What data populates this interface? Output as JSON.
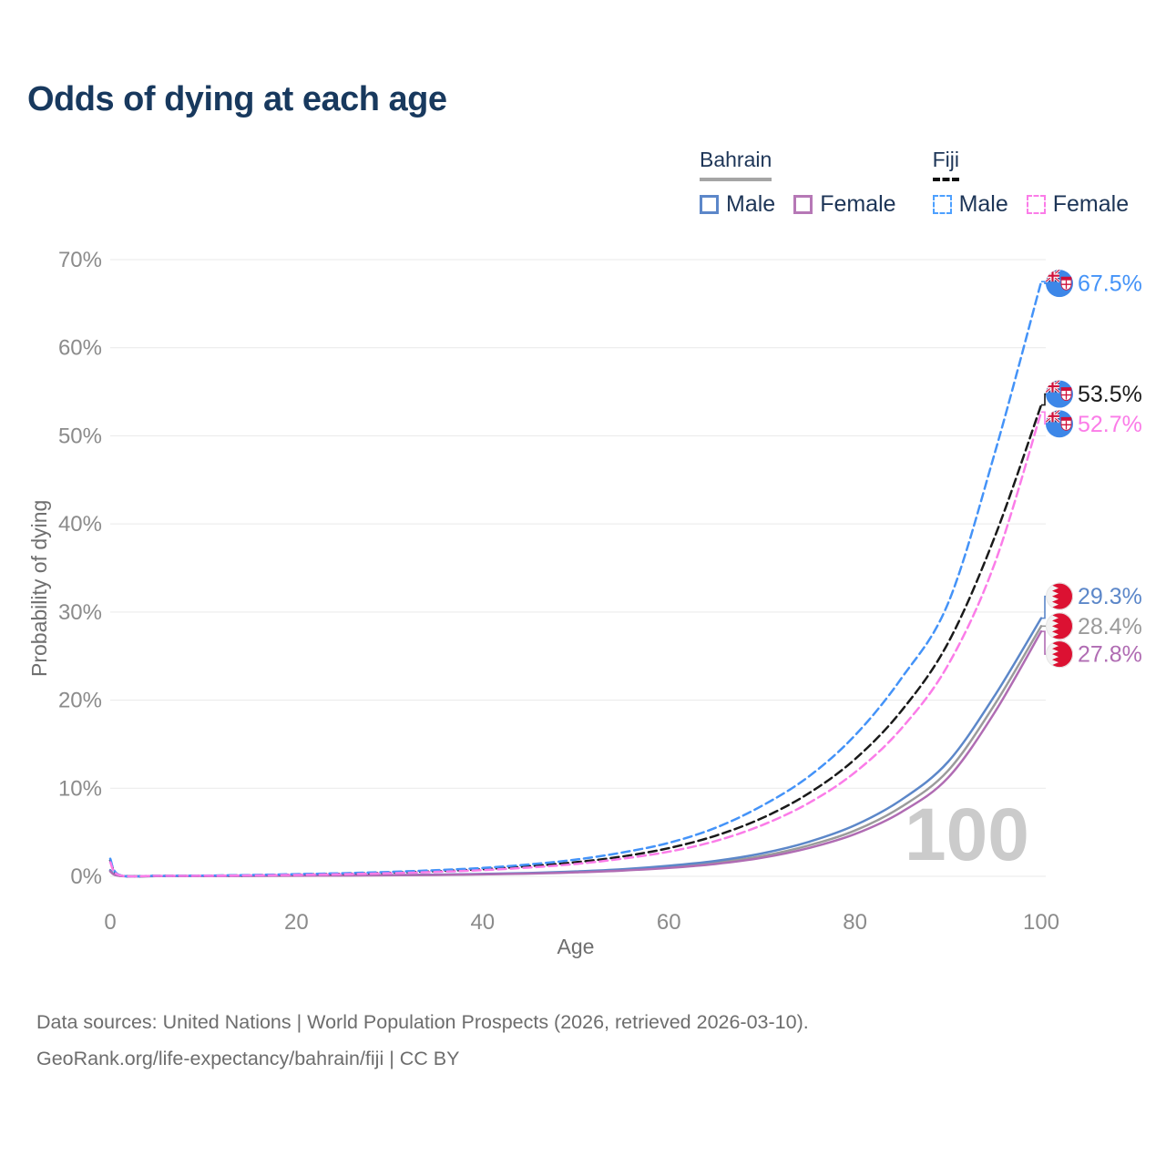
{
  "title": "Odds of dying at each age",
  "watermark": "100",
  "legend": {
    "groups": [
      {
        "country": "Bahrain",
        "style": "solid",
        "line_color": "#a5a5a5",
        "items": [
          {
            "label": "Male",
            "color": "#5c87c9"
          },
          {
            "label": "Female",
            "color": "#b678b6"
          }
        ]
      },
      {
        "country": "Fiji",
        "style": "dashed",
        "line_color": "#111111",
        "items": [
          {
            "label": "Male",
            "color": "#4da0ff"
          },
          {
            "label": "Female",
            "color": "#fb7ce8"
          }
        ]
      }
    ]
  },
  "footer": {
    "line1": "Data sources: United Nations | World Population Prospects (2026, retrieved 2026-03-10).",
    "line2": "GeoRank.org/life-expectancy/bahrain/fiji | CC BY"
  },
  "chart_data": {
    "type": "line",
    "title": "Odds of dying at each age",
    "xlabel": "Age",
    "ylabel": "Probability of dying",
    "xlim": [
      0,
      100
    ],
    "ylim": [
      0,
      70
    ],
    "grid": "horizontal",
    "legend_position": "top-right",
    "x_ticks": [
      {
        "value": 0,
        "label": "0"
      },
      {
        "value": 20,
        "label": "20"
      },
      {
        "value": 40,
        "label": "40"
      },
      {
        "value": 60,
        "label": "60"
      },
      {
        "value": 80,
        "label": "80"
      },
      {
        "value": 100,
        "label": "100"
      }
    ],
    "y_ticks": [
      {
        "value": 0,
        "label": "0%"
      },
      {
        "value": 10,
        "label": "10%"
      },
      {
        "value": 20,
        "label": "20%"
      },
      {
        "value": 30,
        "label": "30%"
      },
      {
        "value": 40,
        "label": "40%"
      },
      {
        "value": 50,
        "label": "50%"
      },
      {
        "value": 60,
        "label": "60%"
      },
      {
        "value": 70,
        "label": "70%"
      }
    ],
    "ages": [
      0,
      1,
      5,
      10,
      15,
      20,
      25,
      30,
      35,
      40,
      45,
      50,
      55,
      60,
      65,
      70,
      75,
      80,
      85,
      90,
      95,
      100
    ],
    "series": [
      {
        "id": "bahrain-all",
        "name": "Bahrain (all)",
        "country": "Bahrain",
        "sex": "All",
        "color": "#9b9b9b",
        "dash": false,
        "flag": "bahrain",
        "end_value": 28.4,
        "end_label": "28.4%",
        "values": [
          0.62,
          0.055,
          0.03,
          0.04,
          0.055,
          0.08,
          0.1,
          0.13,
          0.17,
          0.24,
          0.34,
          0.5,
          0.72,
          1.05,
          1.55,
          2.3,
          3.5,
          5.2,
          7.9,
          12.0,
          19.5,
          28.4
        ]
      },
      {
        "id": "bahrain-male",
        "name": "Bahrain Male",
        "country": "Bahrain",
        "sex": "Male",
        "color": "#5c87c9",
        "dash": false,
        "flag": "bahrain",
        "end_value": 29.3,
        "end_label": "29.3%",
        "values": [
          0.7,
          0.06,
          0.03,
          0.04,
          0.06,
          0.09,
          0.11,
          0.14,
          0.19,
          0.27,
          0.38,
          0.55,
          0.8,
          1.2,
          1.75,
          2.6,
          3.9,
          5.8,
          8.7,
          13.0,
          20.5,
          29.3
        ]
      },
      {
        "id": "bahrain-female",
        "name": "Bahrain Female",
        "country": "Bahrain",
        "sex": "Female",
        "color": "#b06cb3",
        "dash": false,
        "flag": "bahrain",
        "end_value": 27.8,
        "end_label": "27.8%",
        "values": [
          0.55,
          0.05,
          0.02,
          0.03,
          0.05,
          0.07,
          0.09,
          0.12,
          0.16,
          0.22,
          0.31,
          0.45,
          0.65,
          0.95,
          1.4,
          2.1,
          3.2,
          4.8,
          7.3,
          11.2,
          18.6,
          27.8
        ]
      },
      {
        "id": "fiji-all",
        "name": "Fiji (all)",
        "country": "Fiji",
        "sex": "All",
        "color": "#1a1a1a",
        "dash": true,
        "flag": "fiji",
        "end_value": 53.5,
        "end_label": "53.5%",
        "values": [
          1.8,
          0.13,
          0.05,
          0.07,
          0.12,
          0.2,
          0.29,
          0.41,
          0.58,
          0.8,
          1.15,
          1.6,
          2.25,
          3.2,
          4.6,
          6.6,
          9.4,
          13.3,
          18.8,
          26.5,
          38.5,
          53.5
        ]
      },
      {
        "id": "fiji-male",
        "name": "Fiji Male",
        "country": "Fiji",
        "sex": "Male",
        "color": "#4493f8",
        "dash": true,
        "flag": "fiji",
        "end_value": 67.5,
        "end_label": "67.5%",
        "values": [
          2.0,
          0.15,
          0.06,
          0.08,
          0.15,
          0.25,
          0.35,
          0.5,
          0.7,
          0.95,
          1.35,
          1.9,
          2.7,
          3.8,
          5.5,
          8.0,
          11.3,
          16.0,
          22.5,
          31.0,
          48.0,
          67.5
        ]
      },
      {
        "id": "fiji-female",
        "name": "Fiji Female",
        "country": "Fiji",
        "sex": "Female",
        "color": "#fb7ce8",
        "dash": true,
        "flag": "fiji",
        "end_value": 52.7,
        "end_label": "52.7%",
        "values": [
          1.6,
          0.12,
          0.05,
          0.06,
          0.1,
          0.16,
          0.24,
          0.35,
          0.5,
          0.7,
          1.0,
          1.4,
          2.0,
          2.8,
          4.0,
          5.8,
          8.3,
          11.8,
          16.8,
          24.0,
          35.5,
          52.7
        ]
      }
    ]
  }
}
